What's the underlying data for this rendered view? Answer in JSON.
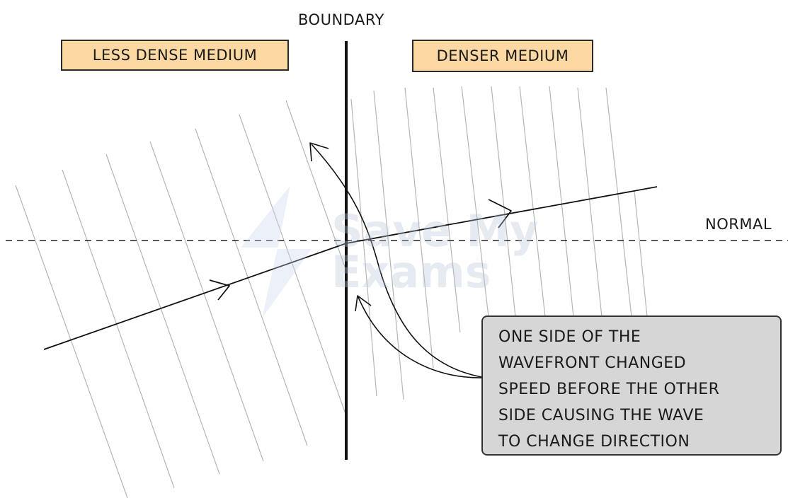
{
  "labels": {
    "boundary": "BOUNDARY",
    "normal": "NORMAL",
    "less_dense": "LESS DENSE MEDIUM",
    "denser": "DENSER MEDIUM"
  },
  "callout": {
    "lines": [
      "ONE SIDE OF THE",
      "WAVEFRONT CHANGED",
      "SPEED BEFORE THE OTHER",
      "SIDE CAUSING THE WAVE",
      "TO CHANGE DIRECTION"
    ]
  },
  "watermark": {
    "line1": "Save My",
    "line2": "Exams"
  },
  "colors": {
    "medium_box": "#fcd9a2",
    "callout_box": "#d6d6d6",
    "wavefront": "#b5b5b5",
    "ink": "#1a1a1a"
  }
}
